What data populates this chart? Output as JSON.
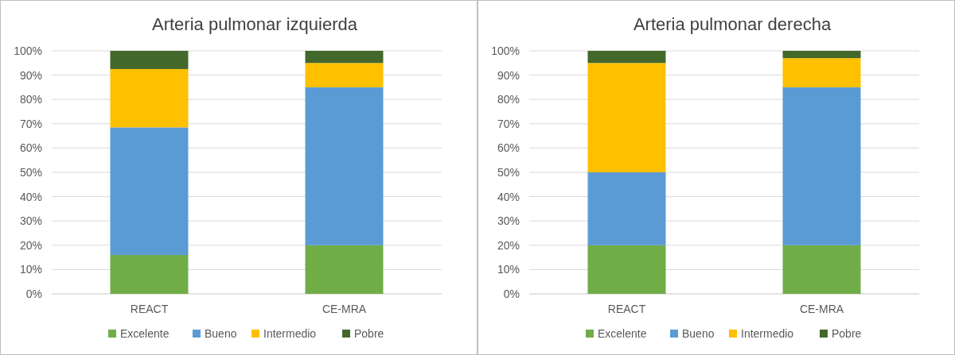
{
  "chart_data": [
    {
      "type": "bar",
      "title": "Arteria pulmonar izquierda",
      "categories": [
        "REACT",
        "CE-MRA"
      ],
      "stacked": true,
      "series": [
        {
          "name": "Excelente",
          "color": "#70ad47",
          "values": [
            16,
            20
          ]
        },
        {
          "name": "Bueno",
          "color": "#5b9bd5",
          "values": [
            52.5,
            65
          ]
        },
        {
          "name": "Intermedio",
          "color": "#ffc000",
          "values": [
            24,
            10
          ]
        },
        {
          "name": "Pobre",
          "color": "#43682b",
          "values": [
            7.5,
            5
          ]
        }
      ],
      "ylim": [
        0,
        100
      ],
      "yticks": [
        {
          "value": 0,
          "label": "0%"
        },
        {
          "value": 10,
          "label": "10%"
        },
        {
          "value": 20,
          "label": "20%"
        },
        {
          "value": 30,
          "label": "30%"
        },
        {
          "value": 40,
          "label": "40%"
        },
        {
          "value": 50,
          "label": "50%"
        },
        {
          "value": 60,
          "label": "60%"
        },
        {
          "value": 70,
          "label": "70%"
        },
        {
          "value": 80,
          "label": "80%"
        },
        {
          "value": 90,
          "label": "90%"
        },
        {
          "value": 100,
          "label": "100%"
        }
      ],
      "grid": "y",
      "legend": "bottom"
    },
    {
      "type": "bar",
      "title": "Arteria pulmonar derecha",
      "categories": [
        "REACT",
        "CE-MRA"
      ],
      "stacked": true,
      "series": [
        {
          "name": "Excelente",
          "color": "#70ad47",
          "values": [
            20,
            20
          ]
        },
        {
          "name": "Bueno",
          "color": "#5b9bd5",
          "values": [
            30,
            65
          ]
        },
        {
          "name": "Intermedio",
          "color": "#ffc000",
          "values": [
            45,
            12
          ]
        },
        {
          "name": "Pobre",
          "color": "#43682b",
          "values": [
            5,
            3
          ]
        }
      ],
      "ylim": [
        0,
        100
      ],
      "yticks": [
        {
          "value": 0,
          "label": "0%"
        },
        {
          "value": 10,
          "label": "10%"
        },
        {
          "value": 20,
          "label": "20%"
        },
        {
          "value": 30,
          "label": "30%"
        },
        {
          "value": 40,
          "label": "40%"
        },
        {
          "value": 50,
          "label": "50%"
        },
        {
          "value": 60,
          "label": "60%"
        },
        {
          "value": 70,
          "label": "70%"
        },
        {
          "value": 80,
          "label": "80%"
        },
        {
          "value": 90,
          "label": "90%"
        },
        {
          "value": 100,
          "label": "100%"
        }
      ],
      "grid": "y",
      "legend": "bottom"
    }
  ]
}
